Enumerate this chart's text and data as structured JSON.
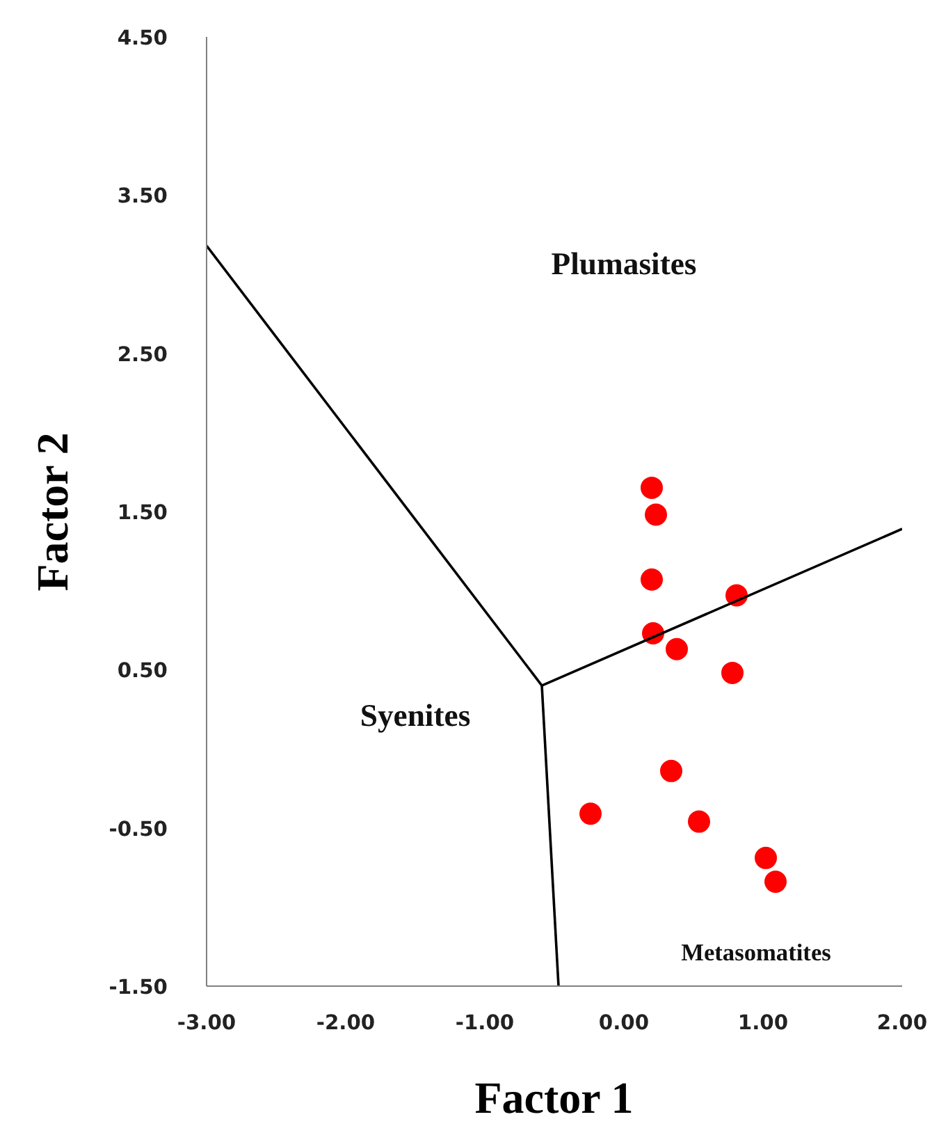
{
  "chart_data": {
    "type": "scatter",
    "xlabel": "Factor 1",
    "ylabel": "Factor 2",
    "xlim": [
      -3.0,
      2.0
    ],
    "ylim": [
      -1.5,
      4.5
    ],
    "xticks": [
      {
        "value": -3,
        "label": "-3.00"
      },
      {
        "value": -2,
        "label": "-2.00"
      },
      {
        "value": -1,
        "label": "-1.00"
      },
      {
        "value": 0,
        "label": "0.00"
      },
      {
        "value": 1,
        "label": "1.00"
      },
      {
        "value": 2,
        "label": "2.00"
      }
    ],
    "yticks": [
      {
        "value": -1.5,
        "label": "-1.50"
      },
      {
        "value": -0.5,
        "label": "-0.50"
      },
      {
        "value": 0.5,
        "label": "0.50"
      },
      {
        "value": 1.5,
        "label": "1.50"
      },
      {
        "value": 2.5,
        "label": "2.50"
      },
      {
        "value": 3.5,
        "label": "3.50"
      },
      {
        "value": 4.5,
        "label": "4.50"
      }
    ],
    "grid": false,
    "series": [
      {
        "marker": "circle",
        "color": "#ff0000",
        "x": [
          0.2,
          0.23,
          0.2,
          0.81,
          0.21,
          0.38,
          0.78,
          0.34,
          -0.24,
          0.54,
          1.02,
          1.09
        ],
        "values": [
          1.65,
          1.48,
          1.07,
          0.97,
          0.73,
          0.63,
          0.48,
          -0.14,
          -0.41,
          -0.46,
          -0.69,
          -0.84
        ]
      },
      {
        "type": "line",
        "color": "#000000",
        "x": [
          -3.0,
          -0.59,
          2.0
        ],
        "values": [
          3.18,
          0.4,
          1.39
        ]
      },
      {
        "type": "line",
        "color": "#000000",
        "x": [
          -0.59,
          -0.47
        ],
        "values": [
          0.4,
          -1.5
        ]
      }
    ],
    "annotations": [
      "Plumasites",
      "Syenites",
      "Metasomatites"
    ]
  }
}
